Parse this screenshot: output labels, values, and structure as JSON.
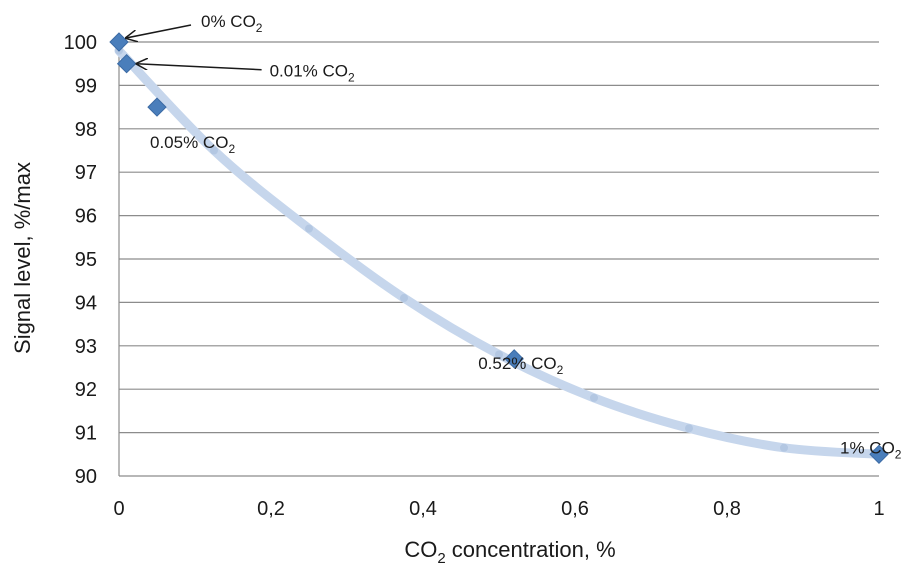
{
  "chart_data": {
    "type": "scatter",
    "title": "",
    "xlabel": {
      "pre": "CO",
      "sub": "2",
      "post": " concentration, %"
    },
    "ylabel": "Signal level, %/max",
    "xlim": [
      0,
      1
    ],
    "ylim": [
      90,
      100
    ],
    "grid": "horizontal",
    "x_ticks": [
      "0",
      "0,2",
      "0,4",
      "0,6",
      "0,8",
      "1"
    ],
    "x_tick_values": [
      0,
      0.2,
      0.4,
      0.6,
      0.8,
      1.0
    ],
    "y_ticks": [
      "90",
      "91",
      "92",
      "93",
      "94",
      "95",
      "96",
      "97",
      "98",
      "99",
      "100"
    ],
    "y_tick_values": [
      90,
      91,
      92,
      93,
      94,
      95,
      96,
      97,
      98,
      99,
      100
    ],
    "series": [
      {
        "marker": "diamond",
        "color": "#4a7ebb",
        "points": [
          {
            "x": 0.0,
            "y": 100.0,
            "label_pre": "0% CO",
            "label_sub": "2"
          },
          {
            "x": 0.01,
            "y": 99.5,
            "label_pre": "0.01% CO",
            "label_sub": "2"
          },
          {
            "x": 0.05,
            "y": 98.5,
            "label_pre": "0.05% CO",
            "label_sub": "2"
          },
          {
            "x": 0.52,
            "y": 92.7,
            "label_pre": "0.52% CO",
            "label_sub": "2"
          },
          {
            "x": 1.0,
            "y": 90.5,
            "label_pre": "1% CO",
            "label_sub": "2"
          }
        ]
      },
      {
        "type": "trendline",
        "color": "#c6d6ec",
        "points": [
          {
            "x": 0.0,
            "y": 99.8
          },
          {
            "x": 0.125,
            "y": 97.5
          },
          {
            "x": 0.25,
            "y": 95.7
          },
          {
            "x": 0.375,
            "y": 94.1
          },
          {
            "x": 0.5,
            "y": 92.8
          },
          {
            "x": 0.625,
            "y": 91.8
          },
          {
            "x": 0.75,
            "y": 91.1
          },
          {
            "x": 0.875,
            "y": 90.65
          },
          {
            "x": 1.0,
            "y": 90.5
          }
        ]
      }
    ]
  }
}
